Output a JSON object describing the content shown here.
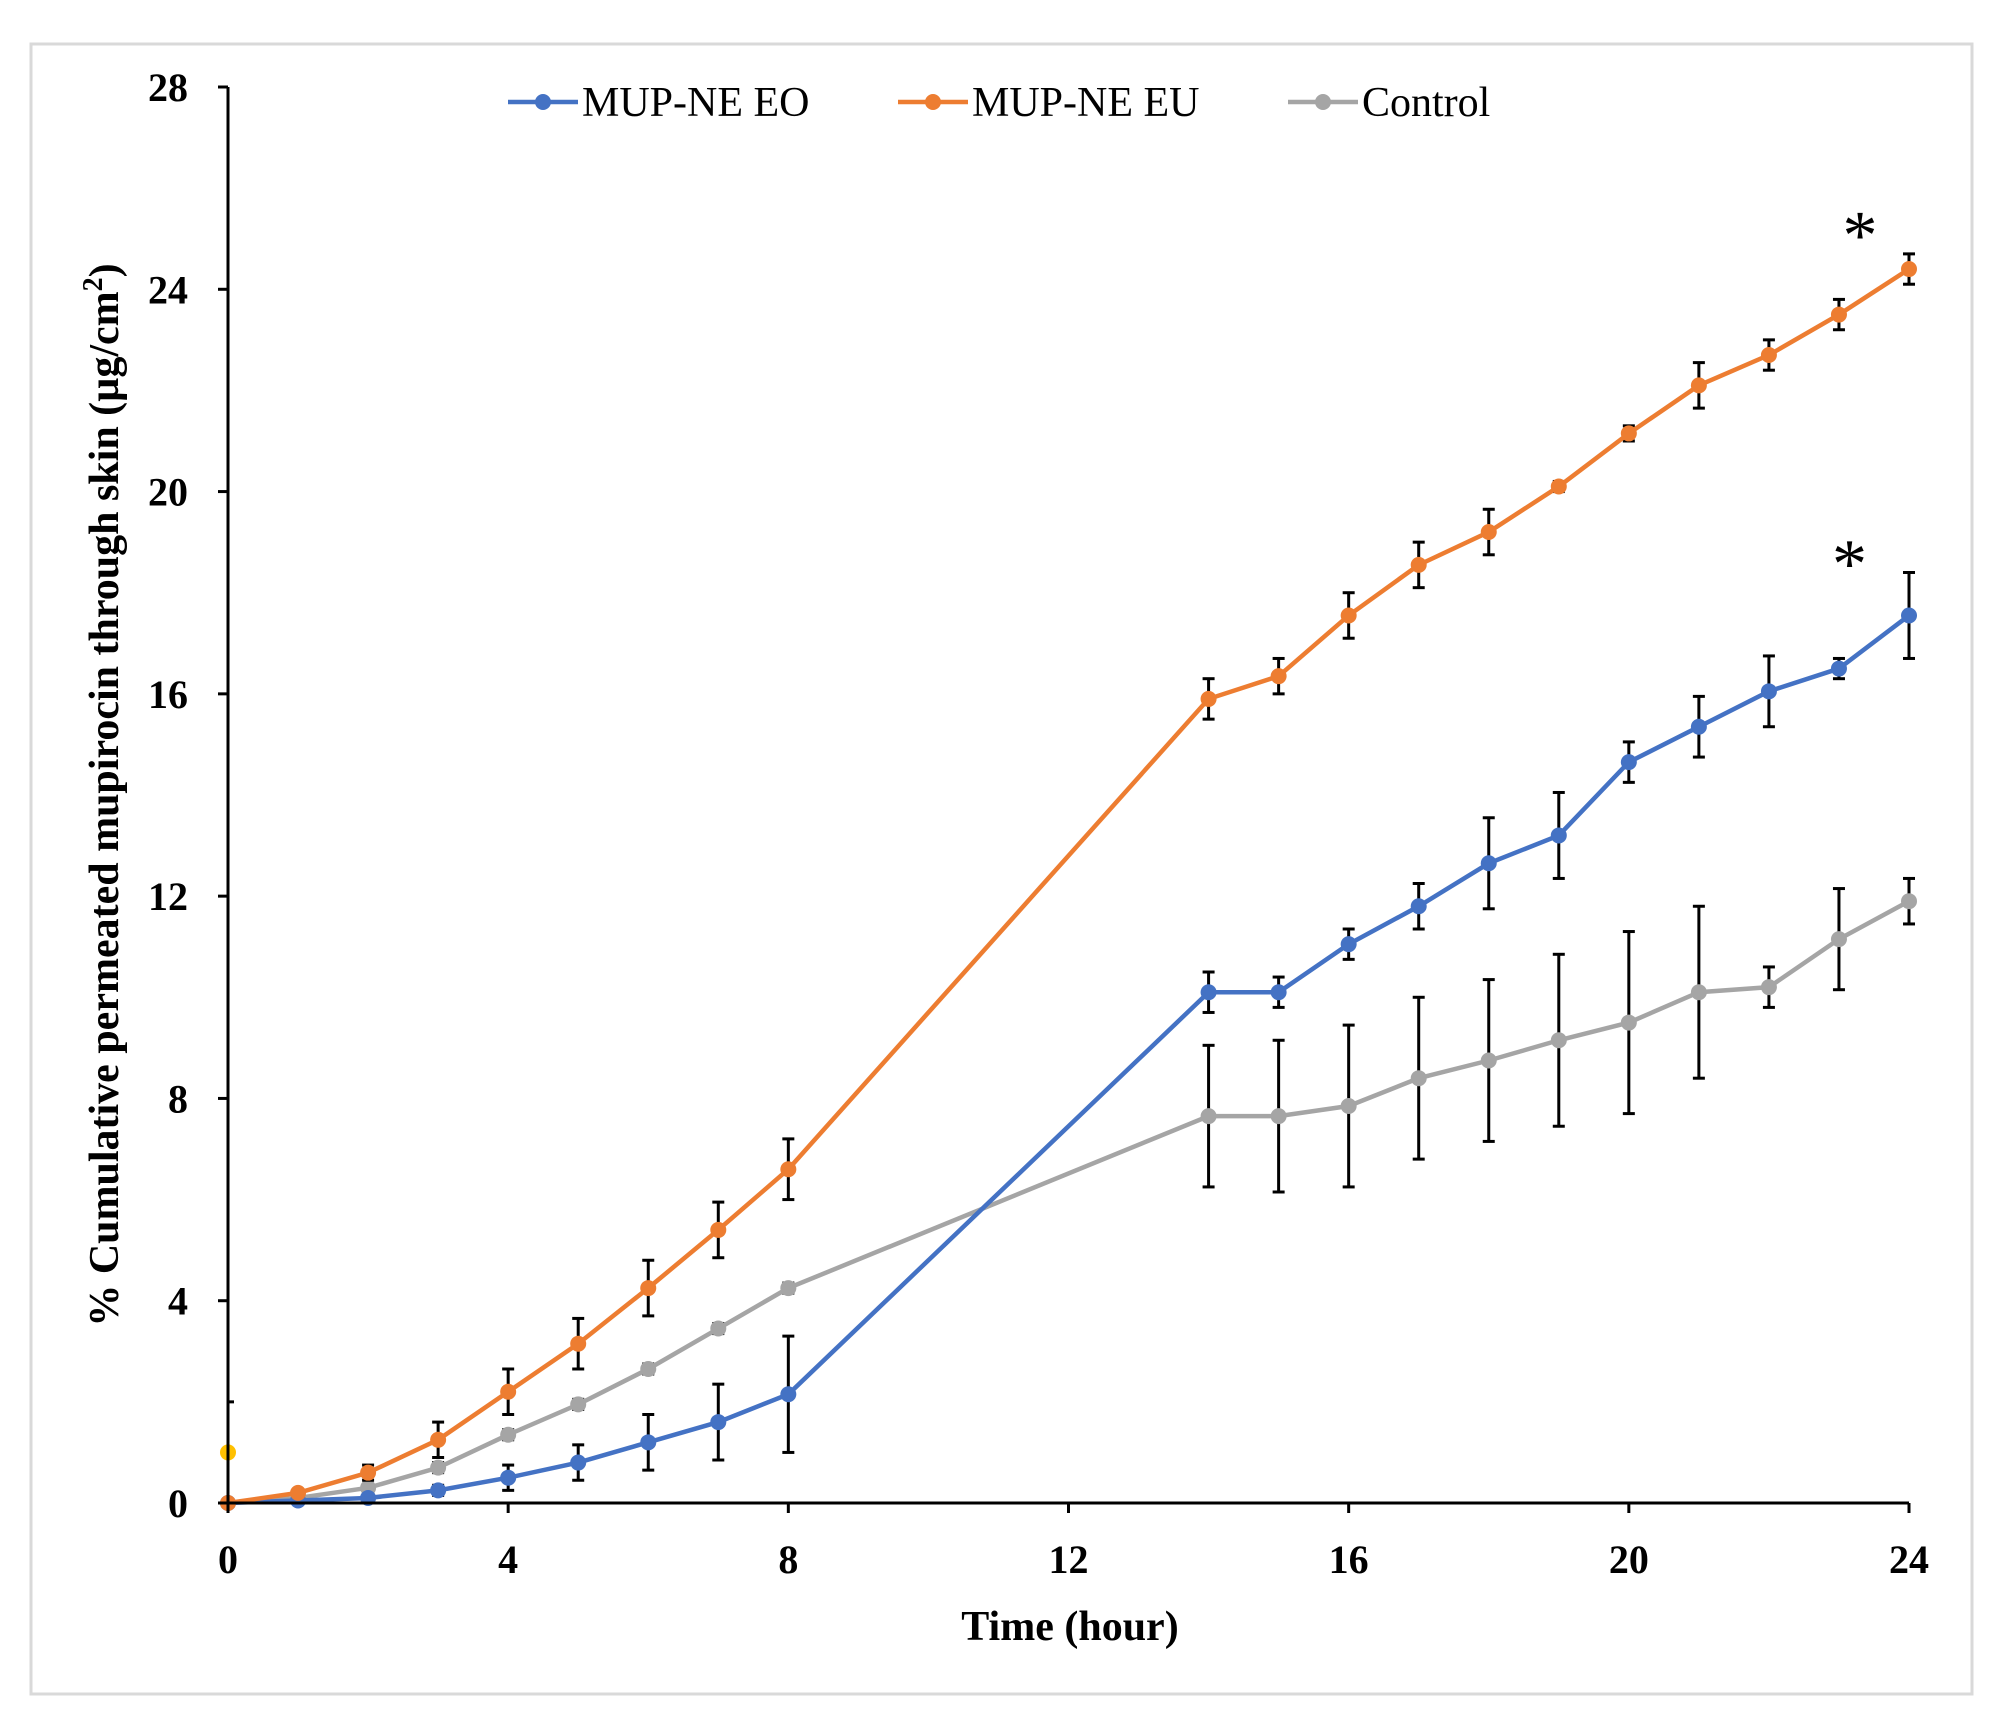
{
  "chart_data": {
    "type": "line",
    "title": "",
    "xlabel": "Time (hour)",
    "ylabel": "% Cumulative permeated mupirocin through skin (µg/cm²)",
    "ylabel_main": "% Cumulative permeated mupirocin through skin (µg/cm",
    "ylabel_sup": "2",
    "ylabel_end": ")",
    "xlim": [
      0,
      24
    ],
    "ylim": [
      0,
      28
    ],
    "xticks": [
      "0",
      "4",
      "8",
      "12",
      "16",
      "20",
      "24"
    ],
    "yticks": [
      "0",
      "4",
      "8",
      "12",
      "16",
      "20",
      "24",
      "28"
    ],
    "grid": false,
    "legend_position": "top-center",
    "x": [
      0,
      1,
      2,
      3,
      4,
      5,
      6,
      7,
      8,
      14,
      15,
      16,
      17,
      18,
      19,
      20,
      21,
      22,
      23,
      24
    ],
    "series": [
      {
        "name": "MUP-NE EO",
        "color": "#4472c4",
        "values": [
          0,
          0.05,
          0.1,
          0.25,
          0.5,
          0.8,
          1.2,
          1.6,
          2.15,
          10.1,
          10.1,
          11.05,
          11.8,
          12.65,
          13.2,
          14.65,
          15.35,
          16.05,
          16.5,
          17.55
        ],
        "errors": [
          0,
          0,
          0,
          0.1,
          0.25,
          0.35,
          0.55,
          0.75,
          1.15,
          0.4,
          0.3,
          0.3,
          0.45,
          0.9,
          0.85,
          0.4,
          0.6,
          0.7,
          0.2,
          0.85
        ]
      },
      {
        "name": "MUP-NE EU",
        "color": "#ed7d31",
        "values": [
          0,
          0.2,
          0.6,
          1.25,
          2.2,
          3.15,
          4.25,
          5.4,
          6.6,
          15.9,
          16.35,
          17.55,
          18.55,
          19.2,
          20.1,
          21.15,
          22.1,
          22.7,
          23.5,
          24.4
        ],
        "errors": [
          0,
          0,
          0.15,
          0.35,
          0.45,
          0.5,
          0.55,
          0.55,
          0.6,
          0.4,
          0.35,
          0.45,
          0.45,
          0.45,
          0.1,
          0.15,
          0.45,
          0.3,
          0.3,
          0.3
        ]
      },
      {
        "name": "Control",
        "color": "#a5a5a5",
        "values": [
          0,
          0.1,
          0.3,
          0.7,
          1.35,
          1.95,
          2.65,
          3.45,
          4.25,
          7.65,
          7.65,
          7.85,
          8.4,
          8.75,
          9.15,
          9.5,
          10.1,
          10.2,
          11.15,
          11.9
        ],
        "errors": [
          0,
          0,
          0,
          0.1,
          0.1,
          0.1,
          0.1,
          0.1,
          0.1,
          1.4,
          1.5,
          1.6,
          1.6,
          1.6,
          1.7,
          1.8,
          1.7,
          0.4,
          1.0,
          0.45
        ]
      }
    ],
    "extra_point": {
      "x": 0,
      "y": 1,
      "error": 1,
      "color": "#ffc000"
    },
    "annotations": [
      {
        "text": "*",
        "x": 23.3,
        "y": 25.4,
        "series": "MUP-NE EU"
      },
      {
        "text": "*",
        "x": 23.15,
        "y": 18.9,
        "series": "MUP-NE EO"
      }
    ]
  }
}
